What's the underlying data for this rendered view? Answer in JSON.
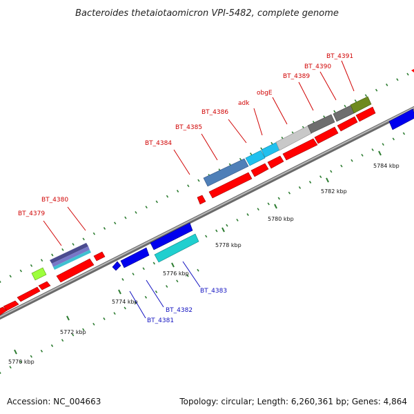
{
  "title": "Bacteroides thetaiotaomicron VPI-5482, complete genome",
  "accession": "Accession: NC_004663",
  "summary": "Topology: circular; Length: 6,260,361 bp; Genes: 4,864",
  "colors": {
    "backbone": "#8a8a8a",
    "tick": "#2e7d32",
    "label_upper": "#d00000",
    "label_lower": "#1010c0",
    "red": "#ff0000",
    "blue": "#0000ee"
  },
  "ticks": [
    "5770 kbp",
    "5772 kbp",
    "5774 kbp",
    "5776 kbp",
    "5778 kbp",
    "5780 kbp",
    "5782 kbp",
    "5784 kbp"
  ],
  "upper_labels": [
    "BT_4379",
    "BT_4380",
    "BT_4384",
    "BT_4385",
    "BT_4386",
    "adk",
    "obgE",
    "BT_4389",
    "BT_4390",
    "BT_4391"
  ],
  "lower_labels": [
    "BT_4381",
    "BT_4382",
    "BT_4383"
  ]
}
